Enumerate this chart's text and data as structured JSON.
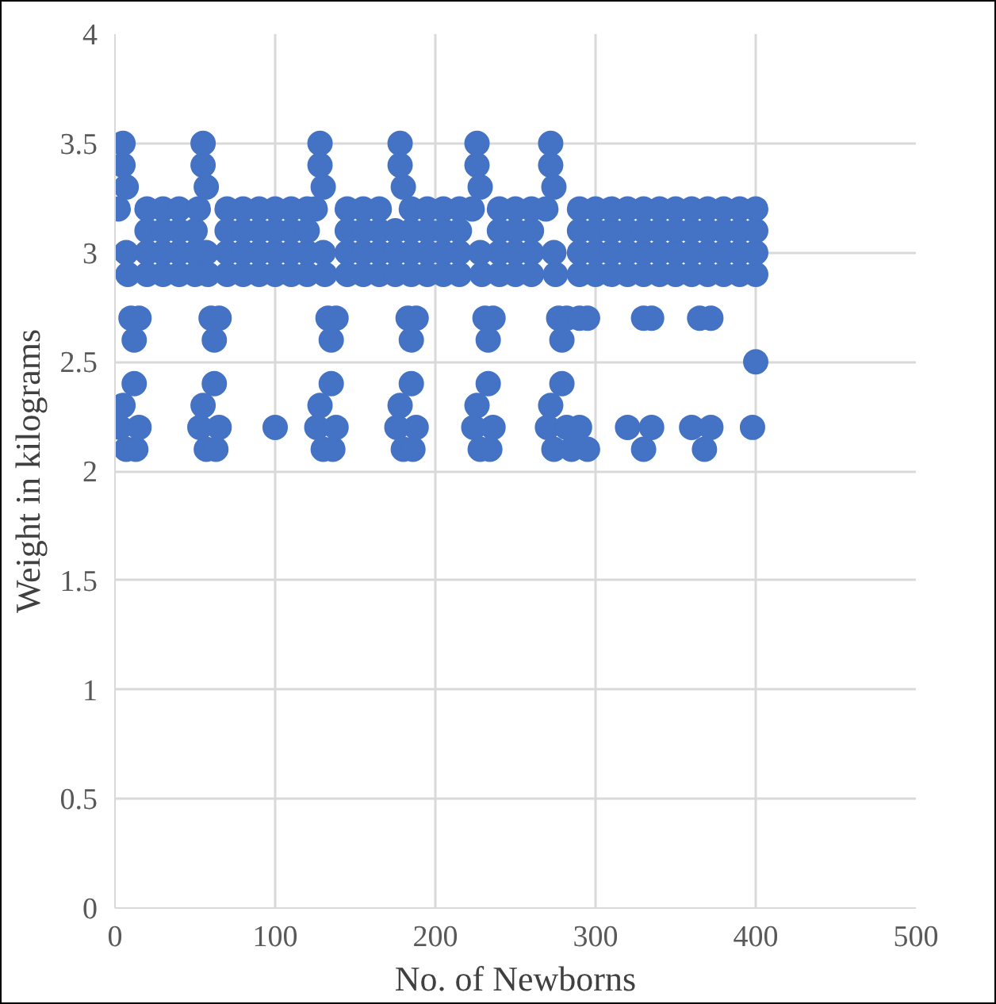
{
  "chart_data": {
    "type": "scatter",
    "xlabel": "No. of Newborns",
    "ylabel": "Weight in kilograms",
    "xlim": [
      0,
      500
    ],
    "xticks": [
      0,
      100,
      200,
      300,
      400,
      500
    ],
    "ylim": [
      0,
      4
    ],
    "yticks": [
      0,
      0.5,
      1,
      1.5,
      2,
      2.5,
      3,
      3.5,
      4
    ],
    "grid": true,
    "marker": "circle",
    "series": [
      {
        "color": "#4472c4",
        "x": [
          20,
          30,
          40,
          50,
          70,
          80,
          90,
          100,
          110,
          120,
          145,
          155,
          165,
          175,
          185,
          195,
          205,
          215,
          240,
          250,
          260,
          290,
          300,
          310,
          320,
          330,
          340,
          350,
          360,
          370,
          380,
          390,
          400,
          20,
          30,
          40,
          50,
          70,
          80,
          90,
          100,
          110,
          120,
          145,
          155,
          165,
          175,
          185,
          195,
          205,
          215,
          240,
          250,
          260,
          290,
          300,
          310,
          320,
          330,
          340,
          350,
          360,
          370,
          380,
          390,
          400,
          20,
          30,
          40,
          50,
          70,
          80,
          90,
          100,
          110,
          120,
          145,
          155,
          165,
          175,
          185,
          195,
          205,
          215,
          240,
          250,
          260,
          290,
          300,
          310,
          320,
          330,
          340,
          350,
          360,
          370,
          380,
          390,
          400,
          20,
          30,
          40,
          70,
          80,
          90,
          100,
          110,
          120,
          145,
          155,
          165,
          185,
          195,
          205,
          215,
          240,
          250,
          260,
          290,
          300,
          310,
          320,
          330,
          340,
          350,
          360,
          370,
          380,
          390,
          400,
          2,
          5,
          5,
          7,
          7,
          8,
          10,
          15,
          12,
          12,
          5,
          3,
          7,
          13,
          15,
          52,
          55,
          55,
          57,
          57,
          58,
          60,
          65,
          62,
          62,
          55,
          53,
          57,
          63,
          65,
          125,
          128,
          128,
          130,
          130,
          131,
          133,
          138,
          135,
          135,
          128,
          126,
          130,
          136,
          138,
          178,
          178,
          180,
          183,
          188,
          185,
          185,
          178,
          176,
          180,
          186,
          188,
          223,
          226,
          226,
          228,
          228,
          229,
          231,
          236,
          233,
          233,
          226,
          224,
          228,
          234,
          236,
          269,
          272,
          272,
          274,
          274,
          275,
          277,
          282,
          279,
          279,
          272,
          270,
          274,
          282,
          100,
          290,
          295,
          290,
          295,
          285,
          330,
          335,
          365,
          372,
          320,
          330,
          335,
          360,
          368,
          372,
          398,
          400
        ],
        "values": [
          2.9,
          2.9,
          2.9,
          2.9,
          2.9,
          2.9,
          2.9,
          2.9,
          2.9,
          2.9,
          2.9,
          2.9,
          2.9,
          2.9,
          2.9,
          2.9,
          2.9,
          2.9,
          2.9,
          2.9,
          2.9,
          2.9,
          2.9,
          2.9,
          2.9,
          2.9,
          2.9,
          2.9,
          2.9,
          2.9,
          2.9,
          2.9,
          2.9,
          3.0,
          3.0,
          3.0,
          3.0,
          3.0,
          3.0,
          3.0,
          3.0,
          3.0,
          3.0,
          3.0,
          3.0,
          3.0,
          3.0,
          3.0,
          3.0,
          3.0,
          3.0,
          3.0,
          3.0,
          3.0,
          3.0,
          3.0,
          3.0,
          3.0,
          3.0,
          3.0,
          3.0,
          3.0,
          3.0,
          3.0,
          3.0,
          3.0,
          3.1,
          3.1,
          3.1,
          3.1,
          3.1,
          3.1,
          3.1,
          3.1,
          3.1,
          3.1,
          3.1,
          3.1,
          3.1,
          3.1,
          3.1,
          3.1,
          3.1,
          3.1,
          3.1,
          3.1,
          3.1,
          3.1,
          3.1,
          3.1,
          3.1,
          3.1,
          3.1,
          3.1,
          3.1,
          3.1,
          3.1,
          3.1,
          3.1,
          3.2,
          3.2,
          3.2,
          3.2,
          3.2,
          3.2,
          3.2,
          3.2,
          3.2,
          3.2,
          3.2,
          3.2,
          3.2,
          3.2,
          3.2,
          3.2,
          3.2,
          3.2,
          3.2,
          3.2,
          3.2,
          3.2,
          3.2,
          3.2,
          3.2,
          3.2,
          3.2,
          3.2,
          3.2,
          3.2,
          3.2,
          3.2,
          3.5,
          3.4,
          3.3,
          3.0,
          2.9,
          2.7,
          2.7,
          2.6,
          2.4,
          2.3,
          2.2,
          2.1,
          2.1,
          2.2,
          3.2,
          3.5,
          3.4,
          3.3,
          3.0,
          2.9,
          2.7,
          2.7,
          2.6,
          2.4,
          2.3,
          2.2,
          2.1,
          2.1,
          2.2,
          3.2,
          3.5,
          3.4,
          3.3,
          3.0,
          2.9,
          2.7,
          2.7,
          2.6,
          2.4,
          2.3,
          2.2,
          2.1,
          2.1,
          2.2,
          3.5,
          3.4,
          3.3,
          2.7,
          2.7,
          2.6,
          2.4,
          2.3,
          2.2,
          2.1,
          2.1,
          2.2,
          3.2,
          3.5,
          3.4,
          3.3,
          3.0,
          2.9,
          2.7,
          2.7,
          2.6,
          2.4,
          2.3,
          2.2,
          2.1,
          2.1,
          2.2,
          3.2,
          3.5,
          3.4,
          3.3,
          3.0,
          2.9,
          2.7,
          2.7,
          2.6,
          2.4,
          2.3,
          2.2,
          2.1,
          2.2,
          2.2,
          2.7,
          2.7,
          2.2,
          2.1,
          2.1,
          2.7,
          2.7,
          2.7,
          2.7,
          2.2,
          2.1,
          2.2,
          2.2,
          2.1,
          2.2,
          2.2,
          2.5
        ]
      }
    ]
  }
}
